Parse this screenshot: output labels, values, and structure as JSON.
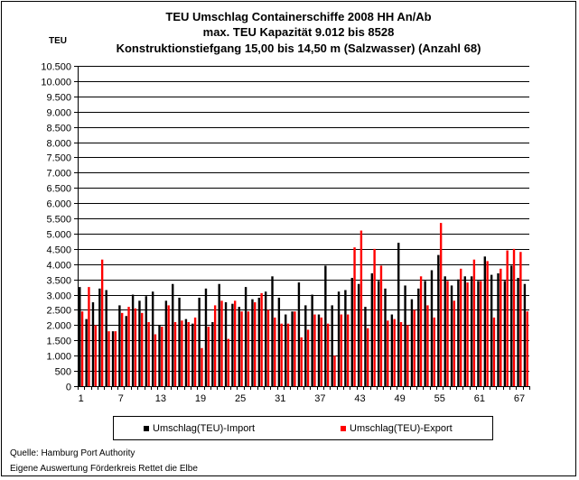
{
  "chart_data": {
    "type": "bar",
    "title_lines": [
      "TEU Umschlag Containerschiffe 2008 HH An/Ab",
      "max. TEU Kapazität 9.012 bis 8528",
      "Konstruktionstiefgang 15,00 bis 14,50 m (Salzwasser)  (Anzahl 68)"
    ],
    "ylabel": "TEU",
    "ylim": [
      0,
      10500
    ],
    "yticks": [
      0,
      500,
      1000,
      1500,
      2000,
      2500,
      3000,
      3500,
      4000,
      4500,
      5000,
      5500,
      6000,
      6500,
      7000,
      7500,
      8000,
      8500,
      9000,
      9500,
      10000,
      10500
    ],
    "ytick_labels": [
      "0",
      "500",
      "1.000",
      "1.500",
      "2.000",
      "2.500",
      "3.000",
      "3.500",
      "4.000",
      "4.500",
      "5.000",
      "5.500",
      "6.000",
      "6.500",
      "7.000",
      "7.500",
      "8.000",
      "8.500",
      "9.000",
      "9.500",
      "10.000",
      "10.500"
    ],
    "x_tick_labels": [
      "1",
      "7",
      "13",
      "19",
      "25",
      "31",
      "37",
      "43",
      "49",
      "55",
      "61",
      "67"
    ],
    "x_tick_positions": [
      1,
      7,
      13,
      19,
      25,
      31,
      37,
      43,
      49,
      55,
      61,
      67
    ],
    "categories_count": 68,
    "grid": "horizontal",
    "legend_position": "bottom",
    "series": [
      {
        "name": "Umschlag(TEU)-Import",
        "color": "#000000",
        "values": [
          3250,
          2200,
          2750,
          3200,
          3150,
          1800,
          2650,
          2300,
          3000,
          2800,
          2950,
          3100,
          2000,
          2800,
          3350,
          2900,
          2200,
          2050,
          2900,
          3200,
          2100,
          3350,
          2750,
          2700,
          2600,
          3250,
          2850,
          2900,
          3100,
          3600,
          2900,
          2350,
          2450,
          3400,
          2650,
          3000,
          2350,
          3950,
          2650,
          3100,
          3150,
          3550,
          3350,
          2600,
          3700,
          3450,
          3200,
          2350,
          4700,
          3300,
          2850,
          3200,
          3450,
          3800,
          4300,
          3600,
          3300,
          3500,
          3600,
          3600,
          3450,
          4250,
          3650,
          3700,
          3450,
          3950,
          3550,
          3350
        ]
      },
      {
        "name": "Umschlag(TEU)-Export",
        "color": "#ff0000",
        "values": [
          2450,
          3250,
          2000,
          4150,
          1800,
          1800,
          2400,
          2600,
          2550,
          2400,
          2100,
          1700,
          1950,
          2650,
          2100,
          2150,
          2100,
          2250,
          1250,
          1950,
          2650,
          2800,
          1550,
          2800,
          2450,
          2450,
          2750,
          3050,
          2500,
          2250,
          2050,
          2050,
          2450,
          1600,
          1850,
          2350,
          2250,
          2050,
          1000,
          2350,
          2350,
          4550,
          5100,
          1900,
          4500,
          3950,
          2150,
          2200,
          2100,
          2000,
          2500,
          3600,
          2650,
          2250,
          5350,
          3450,
          2800,
          3850,
          3400,
          4150,
          3450,
          4100,
          2250,
          3850,
          4450,
          4500,
          4400,
          2450
        ]
      }
    ]
  },
  "footer": {
    "source_line": "Quelle: Hamburg Port Authority",
    "author_line": "Eigene Auswertung Förderkreis Rettet die Elbe"
  }
}
